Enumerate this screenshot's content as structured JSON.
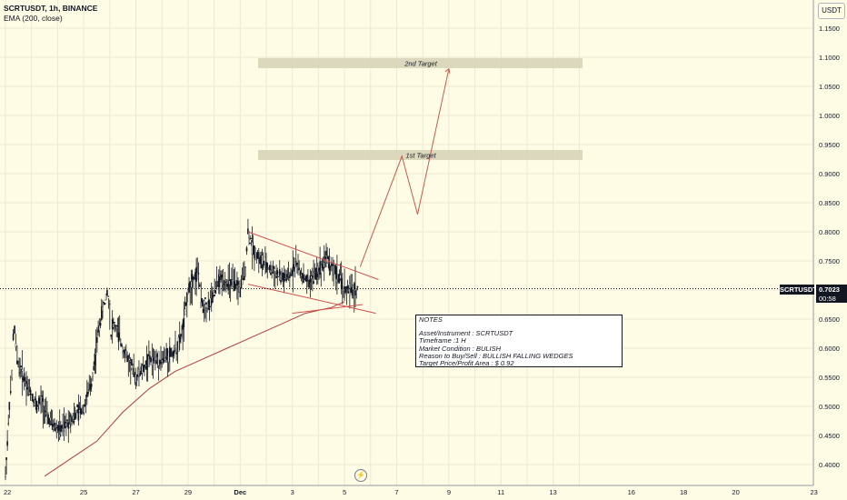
{
  "header": {
    "title": "SCRTUSDT, 1h, BINANCE",
    "indicator": "EMA (200, close)"
  },
  "price_axis": {
    "currency": "USDT",
    "ticks": [
      "1.1500",
      "1.1000",
      "1.0500",
      "1.0000",
      "0.9500",
      "0.9000",
      "0.8500",
      "0.8000",
      "0.7500",
      "0.7000",
      "0.6500",
      "0.6000",
      "0.5500",
      "0.5000",
      "0.4500",
      "0.4000"
    ]
  },
  "time_axis": {
    "ticks": [
      "22",
      "25",
      "27",
      "29",
      "Dec",
      "3",
      "5",
      "7",
      "9",
      "11",
      "13",
      "16",
      "18",
      "20",
      "23"
    ]
  },
  "last_price": {
    "symbol": "SCRTUSDT",
    "value": "0.7023",
    "countdown": "00:58",
    "color": "#131722"
  },
  "targets": [
    {
      "label": "2nd Target",
      "price": 1.09
    },
    {
      "label": "1st Target",
      "price": 0.932
    }
  ],
  "notes": {
    "title": "NOTES",
    "lines": [
      "Asset/Instrument : SCRTUSDT",
      "Timeframe :1 H",
      "Market Condition : BULISH",
      "Reason to Buy/Sell : BULLISH FALLING WEDGES",
      "Target Price/Profit Area : $ 0.92"
    ]
  },
  "colors": {
    "background": "#fffce6",
    "candles": "#131722",
    "ema": "#b23b3b",
    "wedge": "#d05050",
    "projection": "#c85a4a",
    "target_zone": "#d8d4b8"
  },
  "chart_data": {
    "type": "line",
    "price_scale": [
      0.38,
      1.18
    ],
    "x_days": [
      22,
      23,
      24,
      25,
      26,
      27,
      28,
      29,
      30,
      31,
      32,
      33,
      34,
      35,
      36,
      37,
      38,
      39,
      40,
      41,
      42,
      43,
      44
    ],
    "series": [
      {
        "name": "SCRTUSDT",
        "x": [
          22.0,
          22.15,
          22.25,
          22.3,
          22.35,
          22.45,
          22.6,
          22.8,
          23.0,
          23.2,
          23.4,
          23.6,
          23.8,
          24.0,
          24.2,
          24.5,
          24.8,
          25.0,
          25.3,
          25.6,
          25.9,
          26.0,
          26.05,
          26.1,
          26.3,
          26.5,
          26.8,
          27.0,
          27.2,
          27.5,
          27.7,
          28.0,
          28.3,
          28.6,
          28.8,
          29.0,
          29.2,
          29.4,
          29.5,
          29.7,
          29.9,
          30.1,
          30.3,
          30.5,
          30.8,
          31.0,
          31.2,
          31.3,
          31.5,
          31.8,
          32.0,
          32.3,
          32.6,
          32.9,
          33.1,
          33.3,
          33.6,
          33.9,
          34.1,
          34.3,
          34.5,
          34.8,
          35.0,
          35.2,
          35.5
        ],
        "y": [
          0.38,
          0.5,
          0.55,
          0.62,
          0.63,
          0.58,
          0.56,
          0.54,
          0.52,
          0.5,
          0.51,
          0.48,
          0.47,
          0.46,
          0.46,
          0.48,
          0.49,
          0.5,
          0.54,
          0.64,
          0.7,
          0.67,
          0.62,
          0.64,
          0.63,
          0.6,
          0.57,
          0.55,
          0.56,
          0.58,
          0.58,
          0.58,
          0.59,
          0.6,
          0.63,
          0.7,
          0.72,
          0.73,
          0.68,
          0.67,
          0.68,
          0.71,
          0.72,
          0.71,
          0.71,
          0.7,
          0.74,
          0.8,
          0.77,
          0.75,
          0.74,
          0.73,
          0.72,
          0.72,
          0.75,
          0.73,
          0.71,
          0.73,
          0.74,
          0.76,
          0.74,
          0.72,
          0.7,
          0.7,
          0.7
        ]
      },
      {
        "name": "EMA (200, close)",
        "x": [
          23.5,
          24.5,
          25.5,
          26.5,
          27.5,
          28.5,
          29.5,
          30.5,
          31.5,
          32.5,
          33.5,
          34.5,
          35.0
        ],
        "y": [
          0.38,
          0.41,
          0.44,
          0.49,
          0.53,
          0.56,
          0.58,
          0.6,
          0.62,
          0.64,
          0.66,
          0.67,
          0.68
        ]
      },
      {
        "name": "Projection",
        "x": [
          35.6,
          37.2,
          37.8,
          39.0
        ],
        "y": [
          0.74,
          0.93,
          0.83,
          1.08
        ]
      }
    ],
    "wedge": {
      "upper": {
        "x": [
          31.3,
          36.3
        ],
        "y": [
          0.8,
          0.718
        ]
      },
      "lower": {
        "x": [
          31.3,
          36.2
        ],
        "y": [
          0.71,
          0.66
        ]
      },
      "support": {
        "x": [
          33.0,
          35.7
        ],
        "y": [
          0.66,
          0.675
        ]
      }
    }
  }
}
